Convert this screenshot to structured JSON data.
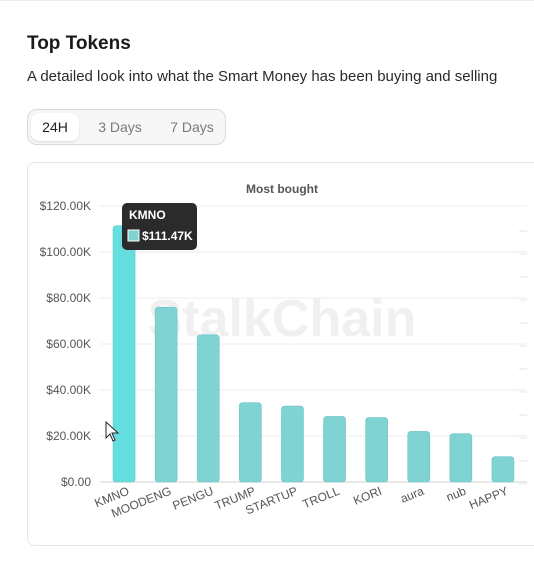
{
  "page": {
    "title": "Top Tokens",
    "subtitle": "A detailed look into what the Smart Money has been buying and selling"
  },
  "tabs": [
    {
      "label": "24H",
      "active": true
    },
    {
      "label": "3 Days",
      "active": false
    },
    {
      "label": "7 Days",
      "active": false
    }
  ],
  "watermark": "StalkChain",
  "tooltip": {
    "token": "KMNO",
    "value": "$111.47K"
  },
  "colors": {
    "bar": "#7fd3d3",
    "bar_highlight": "#64dede",
    "tooltip_bg": "#2b2b2b"
  },
  "chart_data": {
    "type": "bar",
    "title": "Most bought",
    "categories": [
      "KMNO",
      "MOODENG",
      "PENGU",
      "TRUMP",
      "STARTUP",
      "TROLL",
      "KORI",
      "aura",
      "nub",
      "HAPPY"
    ],
    "values": [
      111470,
      76000,
      64000,
      34500,
      33000,
      28500,
      28000,
      22000,
      21000,
      11000
    ],
    "ylim": [
      0,
      120000
    ],
    "yticks": [
      {
        "value": 0,
        "label": "$0.00"
      },
      {
        "value": 20000,
        "label": "$20.00K"
      },
      {
        "value": 40000,
        "label": "$40.00K"
      },
      {
        "value": 60000,
        "label": "$60.00K"
      },
      {
        "value": 80000,
        "label": "$80.00K"
      },
      {
        "value": 100000,
        "label": "$100.00K"
      },
      {
        "value": 120000,
        "label": "$120.00K"
      }
    ],
    "grid": true,
    "xlabel": "",
    "ylabel": ""
  }
}
